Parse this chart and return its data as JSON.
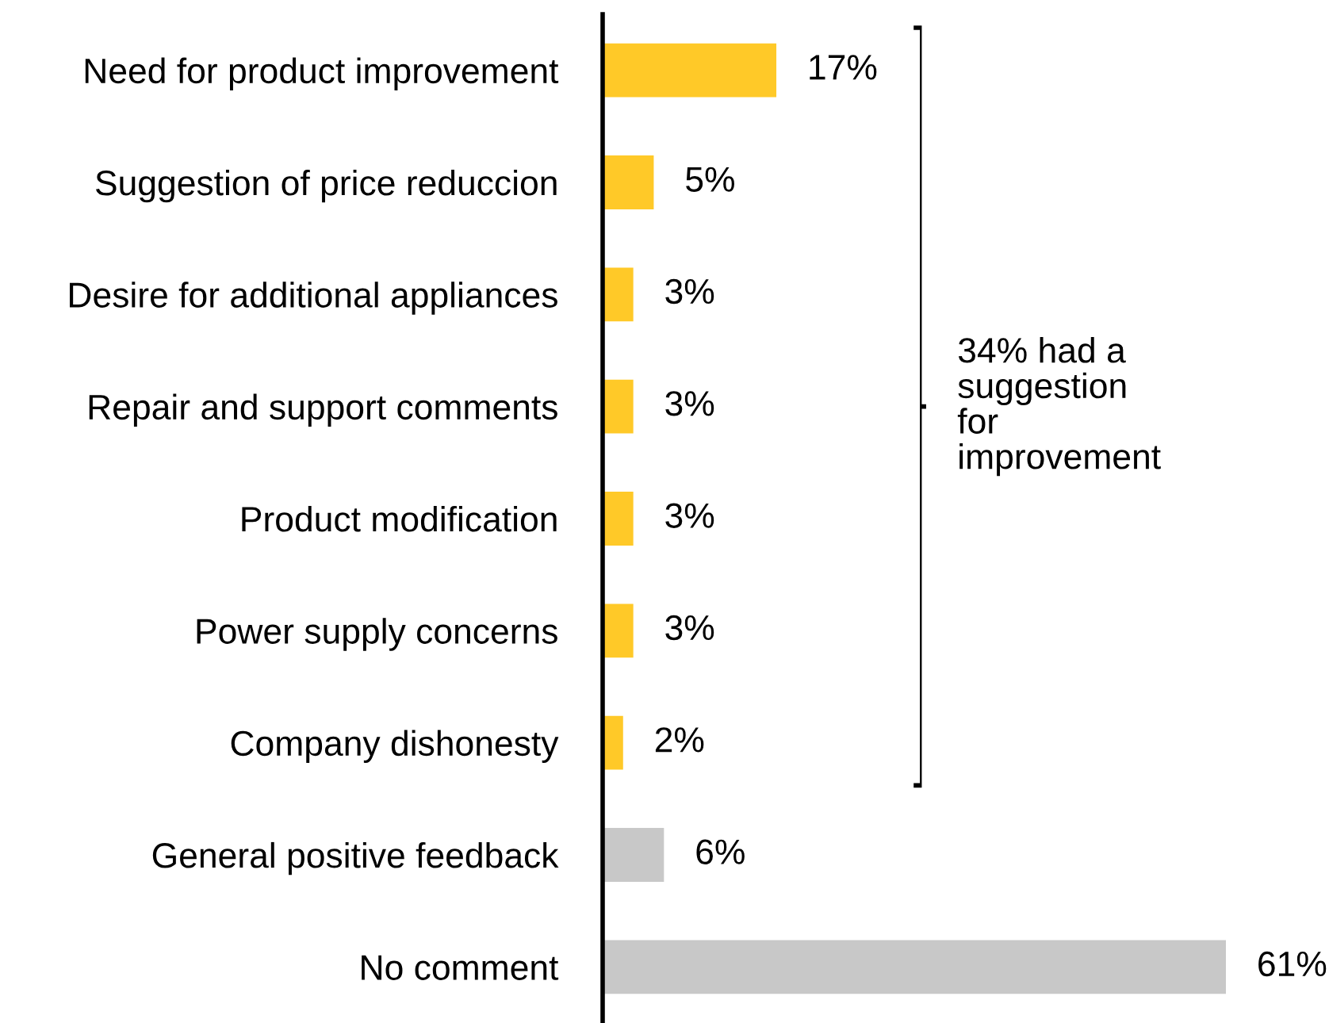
{
  "chart_data": {
    "type": "bar",
    "orientation": "horizontal",
    "categories": [
      "Need for product improvement",
      "Suggestion of price reduccion",
      "Desire for additional appliances",
      "Repair and support comments",
      "Product modification",
      "Power supply concerns",
      "Company dishonesty",
      "General positive feedback",
      "No comment"
    ],
    "values": [
      17,
      5,
      3,
      3,
      3,
      3,
      2,
      6,
      61
    ],
    "value_labels": [
      "17%",
      "5%",
      "3%",
      "3%",
      "3%",
      "3%",
      "2%",
      "6%",
      "61%"
    ],
    "colors": [
      "#ffc928",
      "#ffc928",
      "#ffc928",
      "#ffc928",
      "#ffc928",
      "#ffc928",
      "#ffc928",
      "#c8c8c8",
      "#c8c8c8"
    ],
    "annotations": [
      "34% had a\nsuggestion\nfor\nimprovement"
    ],
    "grid": false,
    "legend": false
  }
}
